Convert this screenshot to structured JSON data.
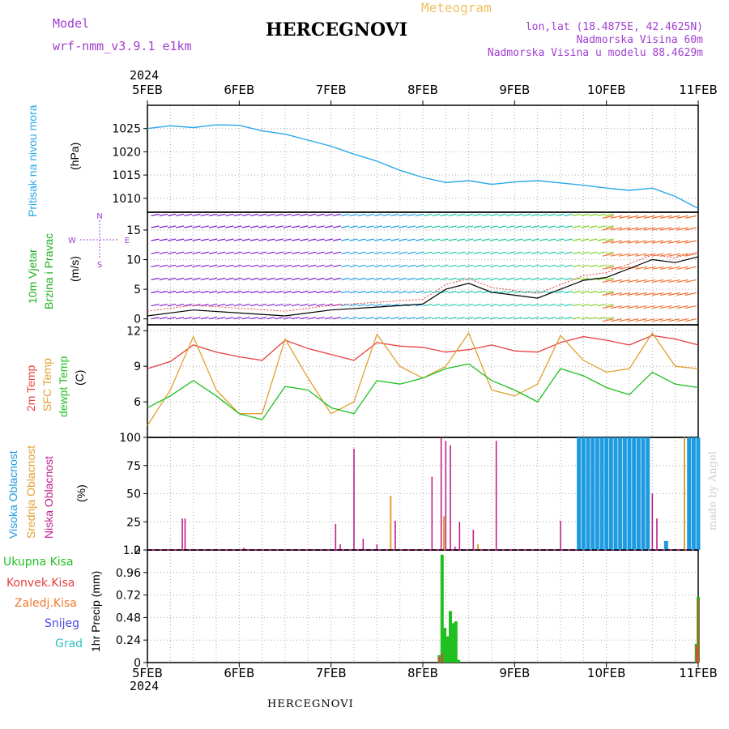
{
  "header": {
    "model_label": "Model",
    "model_name": "wrf-nmm_v3.9.1 e1km",
    "station_name": "HERCEGNOVI",
    "product": "Meteogram",
    "coordinates": "lon,lat (18.4875E, 42.4625N)",
    "elevation": "Nadmorska Visina 60m",
    "model_elevation": "Nadmorska Visina u modelu 88.4629m",
    "year": "2024",
    "footer_station": "HERCEGNOVI",
    "watermark": "made by Angel"
  },
  "colors": {
    "pressure": "#29a8e8",
    "temp_2m": "#e84040",
    "temp_sfc": "#e0a030",
    "dewpoint": "#20c020",
    "wind_label_green": "#20b020",
    "high_cloud": "#1e9be0",
    "mid_cloud": "#e0a030",
    "low_cloud": "#c0208a",
    "precip_total": "#20c020",
    "precip_conv": "#e84040",
    "header_purple": "#a040d0"
  },
  "chart_data": [
    {
      "type": "line",
      "name": "pressure",
      "ylabel": "Pritisak na nivou mora",
      "unit": "(hPa)",
      "ylim": [
        1007,
        1030
      ],
      "yticks": [
        1010,
        1015,
        1020,
        1025
      ],
      "x_days": [
        0,
        0.25,
        0.5,
        0.75,
        1.0,
        1.25,
        1.5,
        1.75,
        2.0,
        2.25,
        2.5,
        2.75,
        3.0,
        3.25,
        3.5,
        3.75,
        4.0,
        4.25,
        4.5,
        4.75,
        5.0,
        5.25,
        5.5,
        5.75,
        6.0
      ],
      "values": [
        1025,
        1025.6,
        1025.2,
        1025.8,
        1025.7,
        1024.5,
        1023.8,
        1022.5,
        1021.2,
        1019.5,
        1018.0,
        1016.0,
        1014.5,
        1013.4,
        1013.8,
        1013.0,
        1013.5,
        1013.8,
        1013.3,
        1012.8,
        1012.2,
        1011.7,
        1012.2,
        1010.4,
        1007.8
      ]
    },
    {
      "type": "line",
      "name": "wind",
      "ylabel": "10m Vjetar Brzina i Pravac",
      "unit": "(m/s)",
      "compass": [
        "N",
        "S",
        "W",
        "E"
      ],
      "ylim": [
        -1,
        18
      ],
      "yticks": [
        0,
        5,
        10,
        15
      ],
      "x_days": [
        0,
        0.5,
        1.0,
        1.5,
        2.0,
        2.5,
        3.0,
        3.25,
        3.5,
        3.75,
        4.0,
        4.25,
        4.5,
        4.75,
        5.0,
        5.25,
        5.5,
        5.75,
        6.0
      ],
      "values": [
        0.5,
        1.5,
        1.0,
        0.5,
        1.5,
        2.0,
        2.5,
        5.0,
        6.0,
        4.5,
        4.0,
        3.5,
        5.0,
        6.5,
        7.0,
        8.5,
        10.0,
        9.5,
        10.5
      ]
    },
    {
      "type": "line",
      "name": "temperature",
      "ylabel": "2m Temp SFC Temp dewpt Temp",
      "unit": "(C)",
      "ylim": [
        3,
        12.5
      ],
      "yticks": [
        6,
        9,
        12
      ],
      "x_days": [
        0,
        0.25,
        0.5,
        0.75,
        1.0,
        1.25,
        1.5,
        1.75,
        2.0,
        2.25,
        2.5,
        2.75,
        3.0,
        3.25,
        3.5,
        3.75,
        4.0,
        4.25,
        4.5,
        4.75,
        5.0,
        5.25,
        5.5,
        5.75,
        6.0
      ],
      "series": [
        {
          "name": "2m Temp",
          "values": [
            8.8,
            9.4,
            10.8,
            10.2,
            9.8,
            9.5,
            11.2,
            10.5,
            10.0,
            9.5,
            11.0,
            10.7,
            10.6,
            10.2,
            10.4,
            10.8,
            10.3,
            10.2,
            11.0,
            11.5,
            11.2,
            10.8,
            11.6,
            11.3,
            10.8
          ]
        },
        {
          "name": "SFC Temp",
          "values": [
            4.0,
            7.0,
            11.5,
            7.0,
            5.0,
            5.0,
            11.3,
            8.0,
            5.0,
            6.0,
            11.7,
            9.0,
            8.0,
            9.0,
            11.8,
            7.0,
            6.5,
            7.5,
            11.6,
            9.5,
            8.5,
            8.8,
            11.8,
            9.0,
            8.8
          ]
        },
        {
          "name": "dewpt Temp",
          "values": [
            5.5,
            6.5,
            7.8,
            6.5,
            5.0,
            4.5,
            7.3,
            7.0,
            5.5,
            5.0,
            7.8,
            7.5,
            8.0,
            8.8,
            9.2,
            7.8,
            7.0,
            6.0,
            8.8,
            8.2,
            7.2,
            6.6,
            8.5,
            7.5,
            7.2
          ]
        }
      ]
    },
    {
      "type": "bar",
      "name": "cloud",
      "ylabel": "Visoka Oblacnost Srednja Oblacnost Niska Oblacnost",
      "unit": "(%)",
      "ylim": [
        0,
        100
      ],
      "yticks": [
        0,
        25,
        50,
        75,
        100
      ],
      "series": [
        {
          "name": "Niska Oblacnost",
          "x_days": [
            0.38,
            0.41,
            1.05,
            2.05,
            2.1,
            2.25,
            2.35,
            2.5,
            2.7,
            3.1,
            3.2,
            3.25,
            3.3,
            3.35,
            3.4,
            3.55,
            3.8,
            4.5,
            5.5,
            5.55
          ],
          "values": [
            28,
            28,
            2,
            23,
            5,
            90,
            10,
            5,
            26,
            65,
            100,
            97,
            93,
            3,
            25,
            18,
            97,
            26,
            50,
            28
          ]
        },
        {
          "name": "Srednja Oblacnost",
          "x_days": [
            2.65,
            3.23,
            3.6,
            5.85
          ],
          "values": [
            48,
            30,
            5,
            100
          ]
        },
        {
          "name": "Visoka Oblacnost",
          "x_days": [
            4.7,
            4.75,
            4.8,
            4.85,
            4.9,
            4.95,
            5.0,
            5.05,
            5.1,
            5.15,
            5.2,
            5.25,
            5.3,
            5.35,
            5.4,
            5.45,
            5.65,
            5.9,
            5.95,
            6.0
          ],
          "values": [
            100,
            100,
            100,
            100,
            100,
            100,
            100,
            100,
            100,
            100,
            100,
            100,
            100,
            100,
            100,
            100,
            8,
            100,
            100,
            100
          ]
        }
      ]
    },
    {
      "type": "bar",
      "name": "precipitation",
      "ylabel": "1hr Precip",
      "unit": "(mm)",
      "legend": [
        "Ukupna Kisa",
        "Konvek.Kisa",
        "Zaledj.Kisa",
        "Snijeg",
        "Grad"
      ],
      "ylim": [
        0,
        1.2
      ],
      "yticks": [
        0,
        0.24,
        0.48,
        0.72,
        0.96,
        1.2
      ],
      "series": [
        {
          "name": "Ukupna Kisa",
          "x_days": [
            3.18,
            3.21,
            3.24,
            3.27,
            3.3,
            3.33,
            3.36,
            3.39,
            5.98,
            6.0
          ],
          "values": [
            0.08,
            1.15,
            0.37,
            0.28,
            0.55,
            0.42,
            0.44,
            0.03,
            0.2,
            0.7
          ]
        },
        {
          "name": "Konvek.Kisa",
          "x_days": [
            3.18,
            3.21,
            5.98,
            6.0
          ],
          "values": [
            0.06,
            0.1,
            0.18,
            0.68
          ]
        }
      ]
    }
  ],
  "x_axis": {
    "day_labels": [
      "5FEB",
      "6FEB",
      "7FEB",
      "8FEB",
      "9FEB",
      "10FEB",
      "11FEB"
    ]
  },
  "labels": {
    "pressure_main": "Pritisak na nivou mora",
    "pressure_unit": "(hPa)",
    "wind_main": "10m Vjetar",
    "wind_sub": "Brzina i Pravac",
    "wind_unit": "(m/s)",
    "temp_2m": "2m Temp",
    "temp_sfc": "SFC Temp",
    "temp_dew": "dewpt Temp",
    "temp_unit": "(C)",
    "cloud_high": "Visoka Oblacnost",
    "cloud_mid": "Srednja Oblacnost",
    "cloud_low": "Niska Oblacnost",
    "cloud_unit": "(%)",
    "precip_axis": "1hr Precip (mm)",
    "compass_n": "N",
    "compass_s": "S",
    "compass_w": "W",
    "compass_e": "E"
  },
  "precip_legend": [
    "Ukupna Kisa",
    "Konvek.Kisa",
    "Zaledj.Kisa",
    "Snijeg",
    "Grad"
  ],
  "precip_legend_colors": [
    "#20c020",
    "#e84040",
    "#f07a30",
    "#4848e0",
    "#30c0c0"
  ]
}
